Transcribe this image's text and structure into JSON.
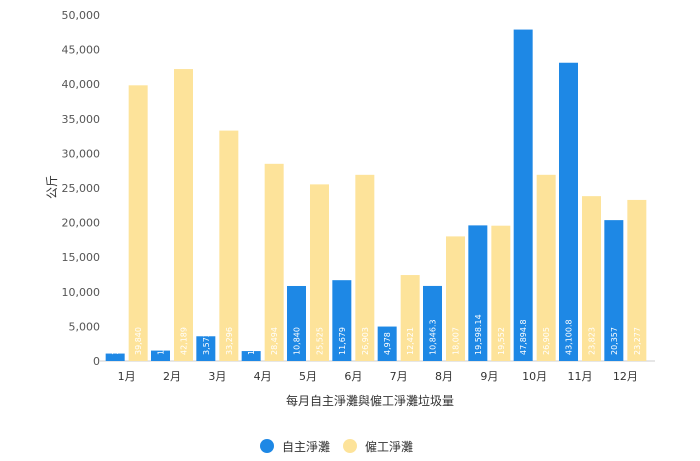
{
  "chart_data": {
    "type": "bar",
    "categories": [
      "1月",
      "2月",
      "3月",
      "4月",
      "5月",
      "6月",
      "7月",
      "8月",
      "9月",
      "10月",
      "11月",
      "12月"
    ],
    "series": [
      {
        "name": "自主淨灘",
        "color": "#1e88e5",
        "values": [
          1075,
          1505,
          3573,
          1435,
          10840,
          11679,
          4978,
          10846.3,
          19598.14,
          47894.8,
          43100.8,
          20357
        ],
        "labels": [
          "1,075",
          "1,505",
          "3,573",
          "1,435",
          "10,840",
          "11,679",
          "4,978",
          "10,846.3",
          "19,598.14",
          "47,894.8",
          "43,100.8",
          "20,357"
        ]
      },
      {
        "name": "僱工淨灘",
        "color": "#fde39a",
        "values": [
          39840,
          42189,
          33296,
          28494,
          25525,
          26903,
          12421,
          18007,
          19552,
          26905,
          23823,
          23277
        ],
        "labels": [
          "39,840",
          "42,189",
          "33,296",
          "28,494",
          "25,525",
          "26,903",
          "12,421",
          "18,007",
          "19,552",
          "26,905",
          "23,823",
          "23,277"
        ]
      }
    ],
    "yticks": [
      "0",
      "5,000",
      "10,000",
      "15,000",
      "20,000",
      "25,000",
      "30,000",
      "35,000",
      "40,000",
      "45,000",
      "50,000"
    ],
    "ylim": [
      0,
      50000
    ],
    "ylabel": "公斤",
    "xlabel": "每月自主淨灘與僱工淨灘垃圾量",
    "grid": false,
    "legend_position": "bottom-center"
  }
}
